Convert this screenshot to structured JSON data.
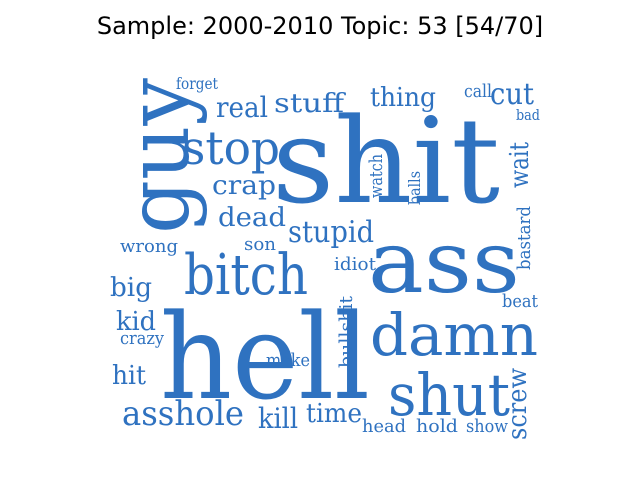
{
  "title": "Sample: 2000-2010 Topic: 53 [54/70]",
  "word_color": "#2f72c0",
  "words": [
    "shit",
    "hell",
    "ass",
    "guy",
    "damn",
    "shut",
    "bitch",
    "stop",
    "asshole",
    "stupid",
    "real",
    "stuff",
    "thing",
    "crap",
    "dead",
    "cut",
    "wait",
    "big",
    "kid",
    "hit",
    "kill",
    "time",
    "son",
    "wrong",
    "call",
    "forget",
    "bad",
    "watch",
    "balls",
    "idiot",
    "bastard",
    "beat",
    "crazy",
    "make",
    "bullshit",
    "screw",
    "head",
    "hold",
    "show"
  ]
}
